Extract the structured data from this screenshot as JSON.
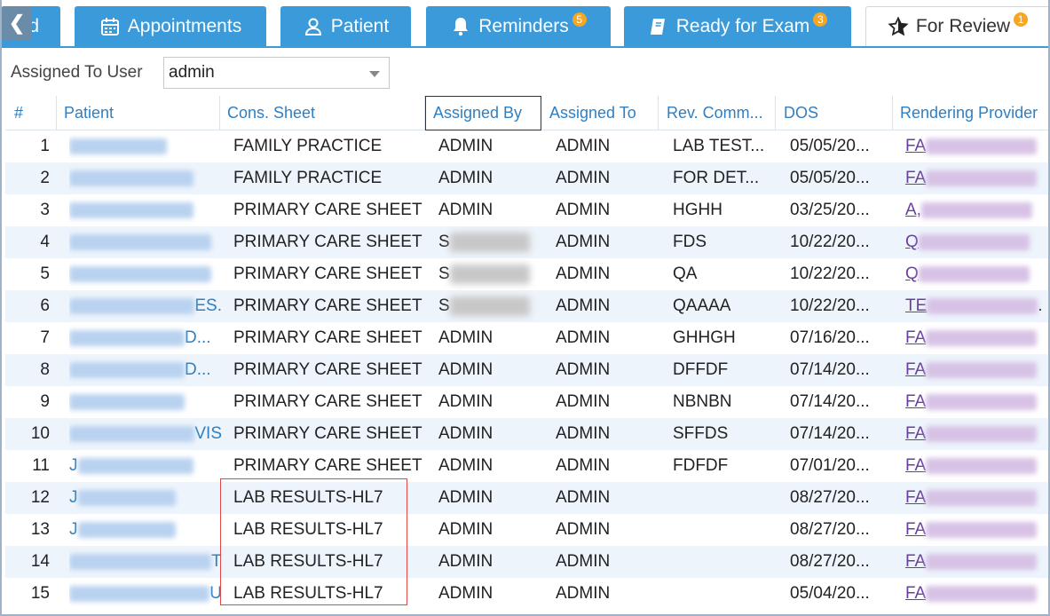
{
  "tabs": {
    "back_label": "❮",
    "partial_label": "d",
    "appointments": {
      "label": "Appointments"
    },
    "patient": {
      "label": "Patient"
    },
    "reminders": {
      "label": "Reminders",
      "badge": "5"
    },
    "ready": {
      "label": "Ready for Exam",
      "badge": "3"
    },
    "review": {
      "label": "For Review",
      "badge": "1"
    }
  },
  "filter": {
    "label": "Assigned To User",
    "value": "admin"
  },
  "columns": [
    "#",
    "Patient",
    "Cons. Sheet",
    "Assigned By",
    "Assigned To",
    "Rev. Comm...",
    "DOS",
    "Rendering Provider"
  ],
  "rows": [
    {
      "num": "1",
      "pat_lead": "",
      "pat_tail": "",
      "cons": "FAMILY PRACTICE",
      "by": "ADMIN",
      "to": "ADMIN",
      "rev": "LAB TEST...",
      "dos": "05/05/20...",
      "prov_lead": "FA",
      "prov_tail": ""
    },
    {
      "num": "2",
      "pat_lead": "",
      "pat_tail": "",
      "cons": "FAMILY PRACTICE",
      "by": "ADMIN",
      "to": "ADMIN",
      "rev": "FOR DET...",
      "dos": "05/05/20...",
      "prov_lead": "FA",
      "prov_tail": ""
    },
    {
      "num": "3",
      "pat_lead": "",
      "pat_tail": "",
      "cons": "PRIMARY CARE SHEET",
      "by": "ADMIN",
      "to": "ADMIN",
      "rev": "HGHH",
      "dos": "03/25/20...",
      "prov_lead": "A,",
      "prov_tail": ""
    },
    {
      "num": "4",
      "pat_lead": "",
      "pat_tail": "",
      "cons": "PRIMARY CARE SHEET",
      "by": "S",
      "to": "ADMIN",
      "rev": "FDS",
      "dos": "10/22/20...",
      "prov_lead": "Q",
      "prov_tail": ""
    },
    {
      "num": "5",
      "pat_lead": "",
      "pat_tail": "",
      "cons": "PRIMARY CARE SHEET",
      "by": "S",
      "to": "ADMIN",
      "rev": "QA",
      "dos": "10/22/20...",
      "prov_lead": "Q",
      "prov_tail": ""
    },
    {
      "num": "6",
      "pat_lead": "",
      "pat_tail": "ES.",
      "cons": "PRIMARY CARE SHEET",
      "by": "S",
      "to": "ADMIN",
      "rev": "QAAAA",
      "dos": "10/22/20...",
      "prov_lead": "TE",
      "prov_tail": "."
    },
    {
      "num": "7",
      "pat_lead": "",
      "pat_tail": "D...",
      "cons": "PRIMARY CARE SHEET",
      "by": "ADMIN",
      "to": "ADMIN",
      "rev": "GHHGH",
      "dos": "07/16/20...",
      "prov_lead": "FA",
      "prov_tail": ""
    },
    {
      "num": "8",
      "pat_lead": "",
      "pat_tail": "D...",
      "cons": "PRIMARY CARE SHEET",
      "by": "ADMIN",
      "to": "ADMIN",
      "rev": "DFFDF",
      "dos": "07/14/20...",
      "prov_lead": "FA",
      "prov_tail": ""
    },
    {
      "num": "9",
      "pat_lead": "",
      "pat_tail": "",
      "cons": "PRIMARY CARE SHEET",
      "by": "ADMIN",
      "to": "ADMIN",
      "rev": "NBNBN",
      "dos": "07/14/20...",
      "prov_lead": "FA",
      "prov_tail": ""
    },
    {
      "num": "10",
      "pat_lead": "",
      "pat_tail": "VIS",
      "cons": "PRIMARY CARE SHEET",
      "by": "ADMIN",
      "to": "ADMIN",
      "rev": "SFFDS",
      "dos": "07/14/20...",
      "prov_lead": "FA",
      "prov_tail": ""
    },
    {
      "num": "11",
      "pat_lead": "J",
      "pat_tail": "",
      "cons": "PRIMARY CARE SHEET",
      "by": "ADMIN",
      "to": "ADMIN",
      "rev": "FDFDF",
      "dos": "07/01/20...",
      "prov_lead": "FA",
      "prov_tail": ""
    },
    {
      "num": "12",
      "pat_lead": "J",
      "pat_tail": "",
      "cons": "LAB RESULTS-HL7",
      "by": "ADMIN",
      "to": "ADMIN",
      "rev": "",
      "dos": "08/27/20...",
      "prov_lead": "FA",
      "prov_tail": ""
    },
    {
      "num": "13",
      "pat_lead": "J",
      "pat_tail": "",
      "cons": "LAB RESULTS-HL7",
      "by": "ADMIN",
      "to": "ADMIN",
      "rev": "",
      "dos": "08/27/20...",
      "prov_lead": "FA",
      "prov_tail": ""
    },
    {
      "num": "14",
      "pat_lead": "",
      "pat_tail": "T",
      "cons": "LAB RESULTS-HL7",
      "by": "ADMIN",
      "to": "ADMIN",
      "rev": "",
      "dos": "08/27/20...",
      "prov_lead": "FA",
      "prov_tail": ""
    },
    {
      "num": "15",
      "pat_lead": "",
      "pat_tail": "U",
      "cons": "LAB RESULTS-HL7",
      "by": "ADMIN",
      "to": "ADMIN",
      "rev": "",
      "dos": "05/04/20...",
      "prov_lead": "FA",
      "prov_tail": ""
    }
  ]
}
